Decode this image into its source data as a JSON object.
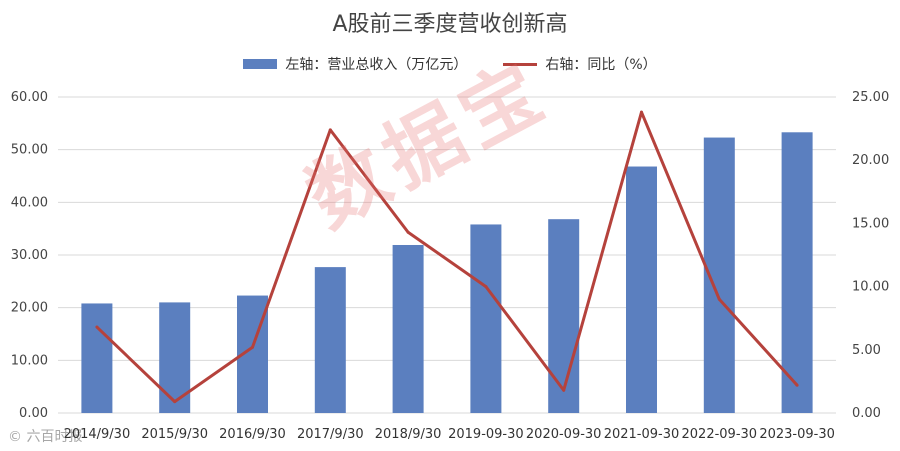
{
  "chart_data": {
    "type": "bar",
    "title": "A股前三季度营收创新高",
    "categories": [
      "2014/9/30",
      "2015/9/30",
      "2016/9/30",
      "2017/9/30",
      "2018/9/30",
      "2019-09-30",
      "2020-09-30",
      "2021-09-30",
      "2022-09-30",
      "2023-09-30"
    ],
    "series": [
      {
        "name": "左轴：营业总收入（万亿元）",
        "type": "bar",
        "axis": "left",
        "values": [
          20.8,
          21.0,
          22.3,
          27.7,
          31.9,
          35.8,
          36.8,
          46.8,
          52.3,
          53.3
        ],
        "color": "#5b7fbf"
      },
      {
        "name": "右轴：同比（%）",
        "type": "line",
        "axis": "right",
        "values": [
          6.8,
          0.9,
          5.2,
          22.4,
          14.3,
          10.0,
          1.8,
          23.8,
          9.0,
          2.2
        ],
        "color": "#b5423c"
      }
    ],
    "y_left": {
      "range": [
        0,
        60
      ],
      "ticks": [
        "0.00",
        "10.00",
        "20.00",
        "30.00",
        "40.00",
        "50.00",
        "60.00"
      ]
    },
    "y_right": {
      "range": [
        0,
        25
      ],
      "ticks": [
        "0.00",
        "5.00",
        "10.00",
        "15.00",
        "20.00",
        "25.00"
      ]
    },
    "grid": true,
    "legend_position": "top-center"
  },
  "watermark": "数据宝",
  "footer": "© 六百时报"
}
